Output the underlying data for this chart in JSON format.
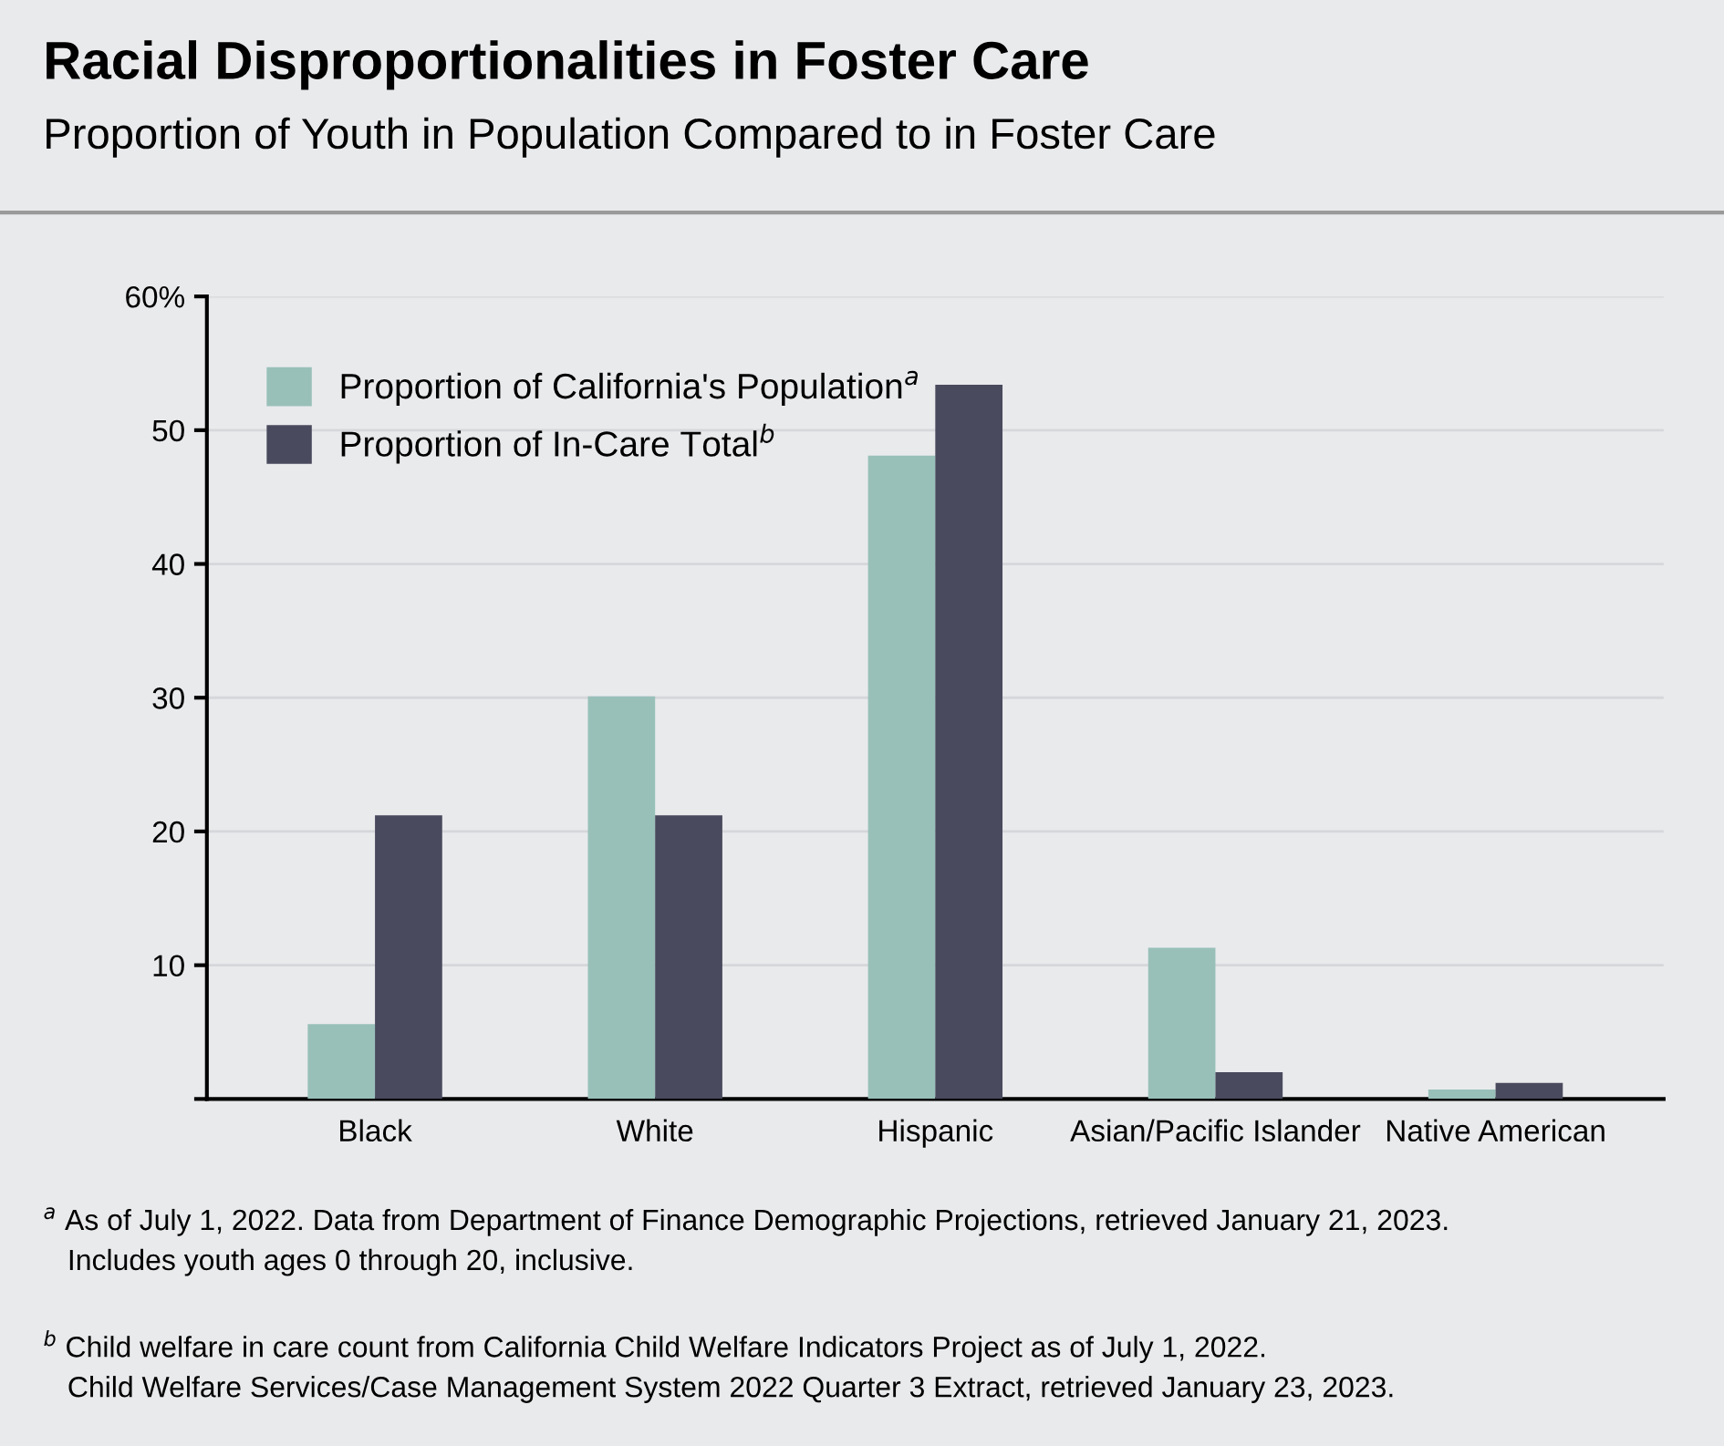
{
  "chart_data": {
    "type": "bar",
    "title": "Racial Disproportionalities in Foster Care",
    "subtitle": "Proportion of Youth in Population Compared to in Foster Care",
    "categories": [
      "Black",
      "White",
      "Hispanic",
      "Asian/Pacific Islander",
      "Native American"
    ],
    "series": [
      {
        "name": "Proportion of California's Population$^{a}$",
        "color": "#98c0b9",
        "values": [
          5.6,
          30.1,
          48.1,
          11.3,
          0.7
        ]
      },
      {
        "name": "Proportion of In-Care Total$^{b}$",
        "color": "#4a4a5e",
        "values": [
          21.2,
          21.2,
          53.4,
          2.0,
          1.2
        ]
      }
    ],
    "ylim": [
      0,
      60
    ],
    "yticks": [
      {
        "value": 0,
        "label": null
      },
      10,
      20,
      30,
      40,
      50,
      {
        "value": 60,
        "label": "60%"
      }
    ],
    "grid": "y",
    "legend": "top left",
    "annotations": [
      "$^{a}$ As of July 1, 2022. Data from Department of Finance Demographic Projections, retrieved January 21, 2023.\n   Includes youth ages 0 through 20, inclusive.",
      "$^{b}$ Child welfare in care count from California Child Welfare Indicators Project as of July 1, 2022.\n   Child Welfare Services/Case Management System 2022 Quarter 3 Extract, retrieved January 23, 2023."
    ]
  }
}
